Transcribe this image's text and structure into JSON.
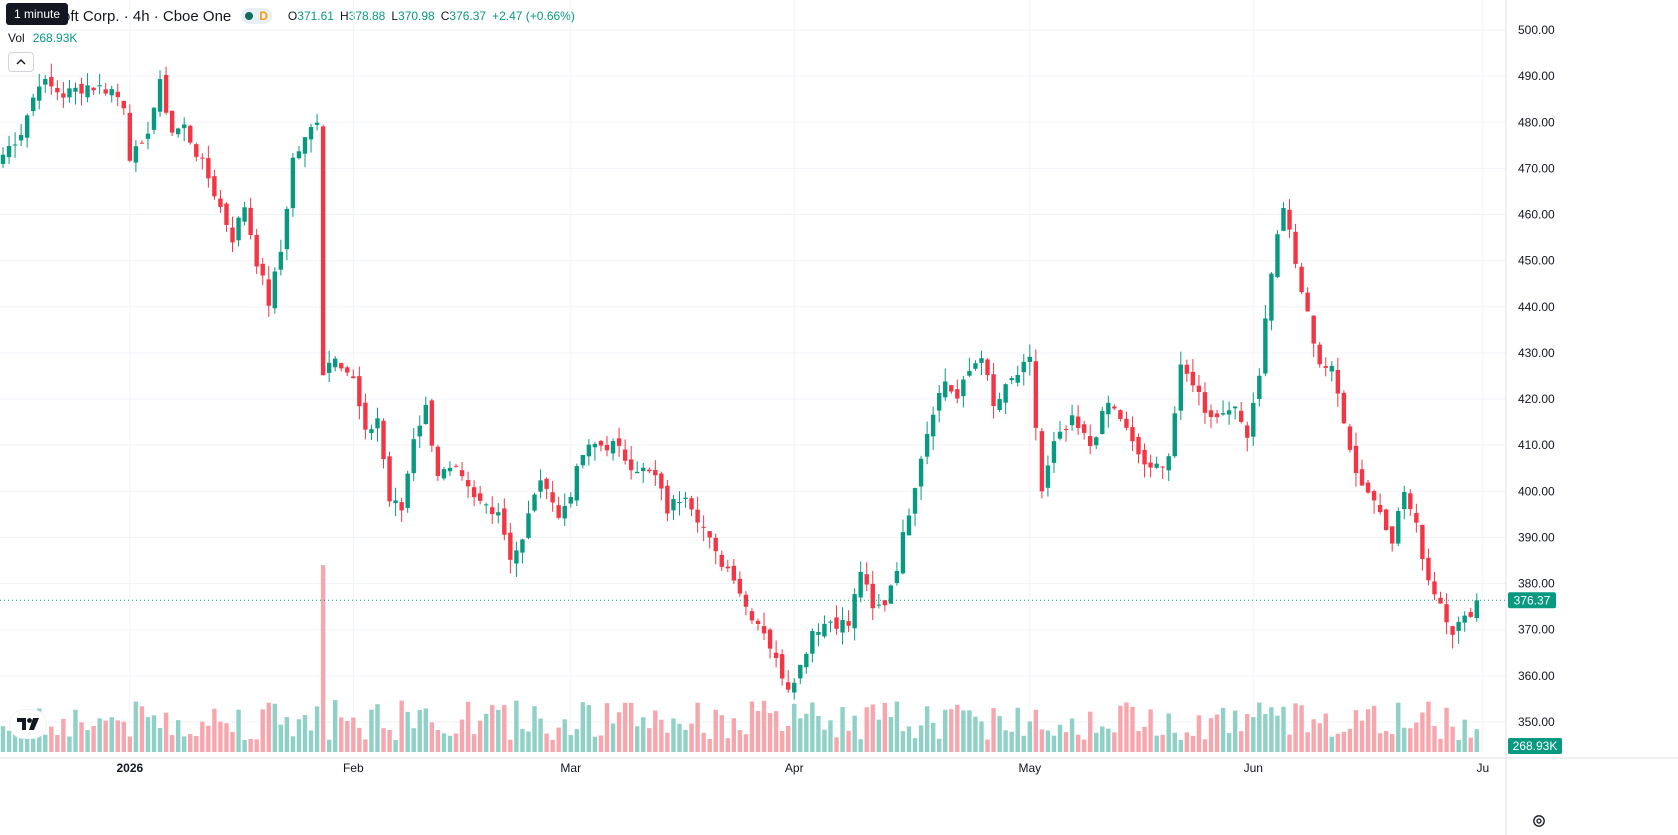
{
  "header": {
    "tooltip": "1 minute",
    "symbol_title": "oft Corp. · 4h · Cboe One",
    "interval_badge": "D",
    "ohlc": {
      "o_label": "O",
      "o_value": "371.61",
      "h_label": "H",
      "h_value": "378.88",
      "l_label": "L",
      "l_value": "370.98",
      "c_label": "C",
      "c_value": "376.37",
      "change": "+2.47 (+0.66%)"
    },
    "volume_label": "Vol",
    "volume_value": "268.93K"
  },
  "colors": {
    "up": "#089981",
    "down": "#f23645",
    "up_volume": "#8fd1c7",
    "down_volume": "#f6a6ad",
    "grid": "#f0f3fa",
    "last_price_line": "#089981"
  },
  "icons": {
    "collapse": "chevron-up-icon",
    "logo": "tradingview-logo",
    "settings": "gear-icon"
  },
  "chart_data": {
    "type": "candlestick",
    "price_axis": {
      "ticks": [
        500,
        490,
        480,
        470,
        460,
        450,
        440,
        430,
        420,
        410,
        400,
        390,
        380,
        370,
        360,
        350
      ],
      "tick_labels": [
        "500.00",
        "490.00",
        "480.00",
        "470.00",
        "460.00",
        "450.00",
        "440.00",
        "430.00",
        "420.00",
        "410.00",
        "400.00",
        "390.00",
        "380.00",
        "370.00",
        "360.00",
        "350.00"
      ]
    },
    "time_axis": {
      "labels": [
        "2026",
        "Feb",
        "Mar",
        "Apr",
        "May",
        "Jun",
        "Jul"
      ],
      "label_display": [
        "2026",
        "Feb",
        "Mar",
        "Apr",
        "May",
        "Jun",
        "Ju"
      ],
      "label_bar_index": [
        21,
        58,
        94,
        131,
        170,
        207,
        245
      ]
    },
    "last_price": 376.37,
    "last_price_label": "376.37",
    "last_volume_label": "268.93K",
    "grid": true,
    "close_path": [
      [
        0,
        473
      ],
      [
        3,
        478
      ],
      [
        6,
        489
      ],
      [
        10,
        486
      ],
      [
        14,
        488
      ],
      [
        18,
        487
      ],
      [
        20,
        484
      ],
      [
        21,
        473
      ],
      [
        23,
        474
      ],
      [
        26,
        488
      ],
      [
        28,
        478
      ],
      [
        30,
        479
      ],
      [
        34,
        468
      ],
      [
        38,
        455
      ],
      [
        40,
        462
      ],
      [
        42,
        450
      ],
      [
        44,
        441
      ],
      [
        46,
        452
      ],
      [
        48,
        472
      ],
      [
        50,
        476
      ],
      [
        52,
        481
      ],
      [
        53,
        426
      ],
      [
        55,
        430
      ],
      [
        56,
        428
      ],
      [
        58,
        424
      ],
      [
        60,
        412
      ],
      [
        62,
        416
      ],
      [
        64,
        398
      ],
      [
        66,
        396
      ],
      [
        68,
        412
      ],
      [
        70,
        418
      ],
      [
        72,
        404
      ],
      [
        75,
        404
      ],
      [
        78,
        398
      ],
      [
        82,
        396
      ],
      [
        84,
        386
      ],
      [
        86,
        389
      ],
      [
        88,
        400
      ],
      [
        90,
        402
      ],
      [
        92,
        394
      ],
      [
        94,
        400
      ],
      [
        96,
        408
      ],
      [
        98,
        410
      ],
      [
        101,
        410
      ],
      [
        104,
        406
      ],
      [
        108,
        403
      ],
      [
        110,
        396
      ],
      [
        113,
        400
      ],
      [
        116,
        392
      ],
      [
        118,
        386
      ],
      [
        121,
        382
      ],
      [
        123,
        375
      ],
      [
        126,
        370
      ],
      [
        128,
        363
      ],
      [
        130,
        358
      ],
      [
        132,
        362
      ],
      [
        134,
        370
      ],
      [
        137,
        372
      ],
      [
        140,
        371
      ],
      [
        142,
        383
      ],
      [
        144,
        374
      ],
      [
        146,
        376
      ],
      [
        148,
        384
      ],
      [
        150,
        396
      ],
      [
        152,
        408
      ],
      [
        154,
        418
      ],
      [
        156,
        424
      ],
      [
        158,
        420
      ],
      [
        160,
        426
      ],
      [
        162,
        430
      ],
      [
        164,
        418
      ],
      [
        167,
        424
      ],
      [
        170,
        428
      ],
      [
        172,
        400
      ],
      [
        174,
        410
      ],
      [
        177,
        415
      ],
      [
        180,
        410
      ],
      [
        183,
        419
      ],
      [
        185,
        416
      ],
      [
        187,
        410
      ],
      [
        190,
        404
      ],
      [
        193,
        408
      ],
      [
        195,
        426
      ],
      [
        197,
        424
      ],
      [
        199,
        418
      ],
      [
        201,
        416
      ],
      [
        203,
        419
      ],
      [
        206,
        413
      ],
      [
        208,
        426
      ],
      [
        210,
        448
      ],
      [
        212,
        462
      ],
      [
        214,
        449
      ],
      [
        216,
        438
      ],
      [
        218,
        428
      ],
      [
        220,
        426
      ],
      [
        222,
        416
      ],
      [
        224,
        404
      ],
      [
        226,
        400
      ],
      [
        228,
        396
      ],
      [
        230,
        390
      ],
      [
        232,
        400
      ],
      [
        234,
        392
      ],
      [
        236,
        381
      ],
      [
        238,
        376
      ],
      [
        240,
        370
      ],
      [
        242,
        372
      ],
      [
        244,
        376.37
      ]
    ],
    "volume_spikes": [
      [
        53,
        384
      ]
    ]
  }
}
